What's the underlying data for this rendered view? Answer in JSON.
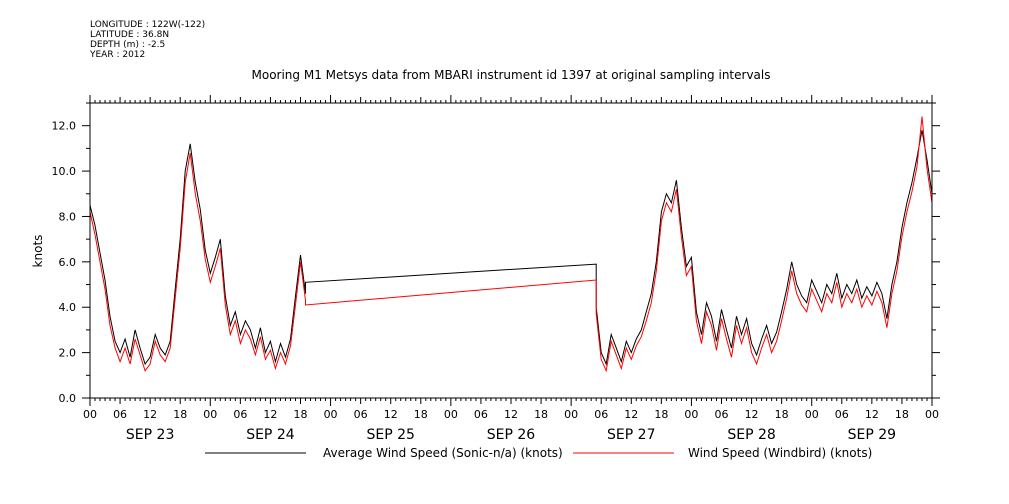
{
  "header": {
    "longitude": "LONGITUDE : 122W(-122)",
    "latitude": "LATITUDE : 36.8N",
    "depth": "DEPTH (m) : -2.5",
    "year": "YEAR : 2012"
  },
  "chart_data": {
    "type": "line",
    "title": "Mooring M1 Metsys data from MBARI instrument id 1397 at original sampling intervals",
    "ylabel": "knots",
    "xlabel": "",
    "ylim": [
      0,
      13
    ],
    "yticks": [
      "0.0",
      "2.0",
      "4.0",
      "6.0",
      "8.0",
      "10.0",
      "12.0"
    ],
    "xlim_hours": [
      0,
      168
    ],
    "hour_tick_labels": [
      "00",
      "06",
      "12",
      "18",
      "00",
      "06",
      "12",
      "18",
      "00",
      "06",
      "12",
      "18",
      "00",
      "06",
      "12",
      "18",
      "00",
      "06",
      "12",
      "18",
      "00",
      "06",
      "12",
      "18",
      "00",
      "06",
      "12",
      "18",
      "00"
    ],
    "day_labels": [
      "SEP 23",
      "SEP 24",
      "SEP 25",
      "SEP 26",
      "SEP 27",
      "SEP 28",
      "SEP 29"
    ],
    "grid": false,
    "legend_position": "bottom",
    "series": [
      {
        "name": "Average Wind Speed (Sonic-n/a) (knots)",
        "color": "#000000",
        "points": [
          [
            0,
            8.5
          ],
          [
            1,
            7.6
          ],
          [
            2,
            6.4
          ],
          [
            3,
            5.2
          ],
          [
            4,
            3.6
          ],
          [
            5,
            2.5
          ],
          [
            6,
            2.0
          ],
          [
            7,
            2.6
          ],
          [
            8,
            1.8
          ],
          [
            9,
            3.0
          ],
          [
            10,
            2.2
          ],
          [
            11,
            1.5
          ],
          [
            12,
            1.8
          ],
          [
            13,
            2.8
          ],
          [
            14,
            2.2
          ],
          [
            15,
            1.9
          ],
          [
            16,
            2.5
          ],
          [
            17,
            4.8
          ],
          [
            18,
            7.0
          ],
          [
            19,
            10.0
          ],
          [
            20,
            11.2
          ],
          [
            21,
            9.5
          ],
          [
            22,
            8.3
          ],
          [
            23,
            6.5
          ],
          [
            24,
            5.5
          ],
          [
            25,
            6.2
          ],
          [
            26,
            7.0
          ],
          [
            27,
            4.5
          ],
          [
            28,
            3.2
          ],
          [
            29,
            3.8
          ],
          [
            30,
            2.8
          ],
          [
            31,
            3.4
          ],
          [
            32,
            3.0
          ],
          [
            33,
            2.2
          ],
          [
            34,
            3.1
          ],
          [
            35,
            2.0
          ],
          [
            36,
            2.5
          ],
          [
            37,
            1.6
          ],
          [
            38,
            2.4
          ],
          [
            39,
            1.8
          ],
          [
            40,
            2.6
          ],
          [
            41,
            4.5
          ],
          [
            42,
            6.3
          ],
          [
            43,
            4.6
          ],
          [
            43,
            5.1
          ],
          [
            101,
            5.9
          ],
          [
            101,
            4.0
          ],
          [
            102,
            2.0
          ],
          [
            103,
            1.5
          ],
          [
            104,
            2.8
          ],
          [
            105,
            2.2
          ],
          [
            106,
            1.6
          ],
          [
            107,
            2.5
          ],
          [
            108,
            2.0
          ],
          [
            109,
            2.6
          ],
          [
            110,
            3.0
          ],
          [
            111,
            3.8
          ],
          [
            112,
            4.6
          ],
          [
            113,
            6.0
          ],
          [
            114,
            8.2
          ],
          [
            115,
            9.0
          ],
          [
            116,
            8.6
          ],
          [
            117,
            9.6
          ],
          [
            118,
            7.5
          ],
          [
            119,
            5.8
          ],
          [
            120,
            6.2
          ],
          [
            121,
            3.8
          ],
          [
            122,
            2.8
          ],
          [
            123,
            4.2
          ],
          [
            124,
            3.6
          ],
          [
            125,
            2.5
          ],
          [
            126,
            3.9
          ],
          [
            127,
            3.0
          ],
          [
            128,
            2.2
          ],
          [
            129,
            3.6
          ],
          [
            130,
            2.8
          ],
          [
            131,
            3.5
          ],
          [
            132,
            2.4
          ],
          [
            133,
            1.9
          ],
          [
            134,
            2.6
          ],
          [
            135,
            3.2
          ],
          [
            136,
            2.4
          ],
          [
            137,
            2.9
          ],
          [
            138,
            3.8
          ],
          [
            139,
            4.8
          ],
          [
            140,
            6.0
          ],
          [
            141,
            5.0
          ],
          [
            142,
            4.5
          ],
          [
            143,
            4.2
          ],
          [
            144,
            5.2
          ],
          [
            145,
            4.7
          ],
          [
            146,
            4.2
          ],
          [
            147,
            5.0
          ],
          [
            148,
            4.6
          ],
          [
            149,
            5.5
          ],
          [
            150,
            4.4
          ],
          [
            151,
            5.0
          ],
          [
            152,
            4.6
          ],
          [
            153,
            5.2
          ],
          [
            154,
            4.4
          ],
          [
            155,
            4.9
          ],
          [
            156,
            4.5
          ],
          [
            157,
            5.1
          ],
          [
            158,
            4.6
          ],
          [
            159,
            3.5
          ],
          [
            160,
            5.0
          ],
          [
            161,
            6.0
          ],
          [
            162,
            7.5
          ],
          [
            163,
            8.6
          ],
          [
            164,
            9.5
          ],
          [
            165,
            10.6
          ],
          [
            166,
            11.8
          ],
          [
            167,
            10.5
          ],
          [
            168,
            9.0
          ]
        ]
      },
      {
        "name": "Wind Speed (Windbird) (knots)",
        "color": "#ff0000",
        "points": [
          [
            0,
            8.2
          ],
          [
            1,
            7.2
          ],
          [
            2,
            6.0
          ],
          [
            3,
            4.8
          ],
          [
            4,
            3.2
          ],
          [
            5,
            2.2
          ],
          [
            6,
            1.6
          ],
          [
            7,
            2.2
          ],
          [
            8,
            1.5
          ],
          [
            9,
            2.6
          ],
          [
            10,
            1.9
          ],
          [
            11,
            1.2
          ],
          [
            12,
            1.5
          ],
          [
            13,
            2.5
          ],
          [
            14,
            1.9
          ],
          [
            15,
            1.6
          ],
          [
            16,
            2.2
          ],
          [
            17,
            4.4
          ],
          [
            18,
            6.6
          ],
          [
            19,
            9.5
          ],
          [
            20,
            10.8
          ],
          [
            21,
            9.0
          ],
          [
            22,
            7.8
          ],
          [
            23,
            6.1
          ],
          [
            24,
            5.1
          ],
          [
            25,
            5.8
          ],
          [
            26,
            6.6
          ],
          [
            27,
            4.1
          ],
          [
            28,
            2.8
          ],
          [
            29,
            3.4
          ],
          [
            30,
            2.4
          ],
          [
            31,
            3.0
          ],
          [
            32,
            2.6
          ],
          [
            33,
            1.9
          ],
          [
            34,
            2.7
          ],
          [
            35,
            1.7
          ],
          [
            36,
            2.1
          ],
          [
            37,
            1.3
          ],
          [
            38,
            2.0
          ],
          [
            39,
            1.5
          ],
          [
            40,
            2.3
          ],
          [
            41,
            4.1
          ],
          [
            42,
            6.0
          ],
          [
            43,
            4.3
          ],
          [
            43,
            4.1
          ],
          [
            101,
            5.2
          ],
          [
            101,
            3.7
          ],
          [
            102,
            1.7
          ],
          [
            103,
            1.2
          ],
          [
            104,
            2.5
          ],
          [
            105,
            1.9
          ],
          [
            106,
            1.3
          ],
          [
            107,
            2.2
          ],
          [
            108,
            1.7
          ],
          [
            109,
            2.3
          ],
          [
            110,
            2.7
          ],
          [
            111,
            3.4
          ],
          [
            112,
            4.2
          ],
          [
            113,
            5.6
          ],
          [
            114,
            7.8
          ],
          [
            115,
            8.6
          ],
          [
            116,
            8.2
          ],
          [
            117,
            9.2
          ],
          [
            118,
            7.1
          ],
          [
            119,
            5.4
          ],
          [
            120,
            5.8
          ],
          [
            121,
            3.4
          ],
          [
            122,
            2.4
          ],
          [
            123,
            3.8
          ],
          [
            124,
            3.2
          ],
          [
            125,
            2.1
          ],
          [
            126,
            3.5
          ],
          [
            127,
            2.6
          ],
          [
            128,
            1.8
          ],
          [
            129,
            3.2
          ],
          [
            130,
            2.4
          ],
          [
            131,
            3.1
          ],
          [
            132,
            2.0
          ],
          [
            133,
            1.5
          ],
          [
            134,
            2.2
          ],
          [
            135,
            2.8
          ],
          [
            136,
            2.0
          ],
          [
            137,
            2.5
          ],
          [
            138,
            3.4
          ],
          [
            139,
            4.4
          ],
          [
            140,
            5.6
          ],
          [
            141,
            4.6
          ],
          [
            142,
            4.1
          ],
          [
            143,
            3.8
          ],
          [
            144,
            4.8
          ],
          [
            145,
            4.3
          ],
          [
            146,
            3.8
          ],
          [
            147,
            4.6
          ],
          [
            148,
            4.2
          ],
          [
            149,
            5.1
          ],
          [
            150,
            4.0
          ],
          [
            151,
            4.6
          ],
          [
            152,
            4.2
          ],
          [
            153,
            4.8
          ],
          [
            154,
            4.0
          ],
          [
            155,
            4.5
          ],
          [
            156,
            4.1
          ],
          [
            157,
            4.7
          ],
          [
            158,
            4.2
          ],
          [
            159,
            3.1
          ],
          [
            160,
            4.6
          ],
          [
            161,
            5.6
          ],
          [
            162,
            7.1
          ],
          [
            163,
            8.2
          ],
          [
            164,
            9.1
          ],
          [
            165,
            10.2
          ],
          [
            166,
            12.4
          ],
          [
            167,
            10.1
          ],
          [
            168,
            8.6
          ]
        ]
      }
    ]
  }
}
